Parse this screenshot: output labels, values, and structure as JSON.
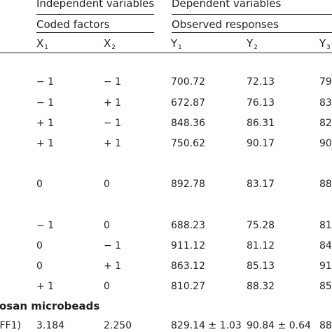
{
  "headers": {
    "independent": "Independent variables",
    "dependent": "Dependent variables",
    "coded_factors": "Coded factors",
    "observed_responses": "Observed responses"
  },
  "columns": [
    {
      "base": "X",
      "sub": "1"
    },
    {
      "base": "X",
      "sub": "2"
    },
    {
      "base": "Y",
      "sub": "1"
    },
    {
      "base": "Y",
      "sub": "2"
    },
    {
      "base": "Y",
      "sub": "3"
    }
  ],
  "rows": [
    {
      "x1": "− 1",
      "x2": "− 1",
      "y1": "700.72",
      "y2": "72.13",
      "y3": "79."
    },
    {
      "x1": "− 1",
      "x2": "+ 1",
      "y1": "672.87",
      "y2": "76.13",
      "y3": "83."
    },
    {
      "x1": "+ 1",
      "x2": "− 1",
      "y1": "848.36",
      "y2": "86.31",
      "y3": "82."
    },
    {
      "x1": "+ 1",
      "x2": "+ 1",
      "y1": "750.62",
      "y2": "90.17",
      "y3": "90."
    },
    {
      "x1": "0",
      "x2": "0",
      "y1": "892.78",
      "y2": "83.17",
      "y3": "88."
    },
    {
      "x1": "− 1",
      "x2": "0",
      "y1": "688.23",
      "y2": "75.28",
      "y3": "81."
    },
    {
      "x1": "0",
      "x2": "− 1",
      "y1": "911.12",
      "y2": "81.12",
      "y3": "84."
    },
    {
      "x1": "0",
      "x2": "+ 1",
      "y1": "863.12",
      "y2": "85.13",
      "y3": "91."
    },
    {
      "x1": "+ 1",
      "x2": "0",
      "y1": "810.27",
      "y2": "88.32",
      "y3": "85."
    }
  ],
  "section_label": "osan microbeads",
  "final_row": {
    "label": "(FF1)",
    "x1": "3.184",
    "x2": "2.250",
    "y1": "829.14 ± 1.03",
    "y2": "90.84 ± 0.64",
    "y3": "88."
  }
}
